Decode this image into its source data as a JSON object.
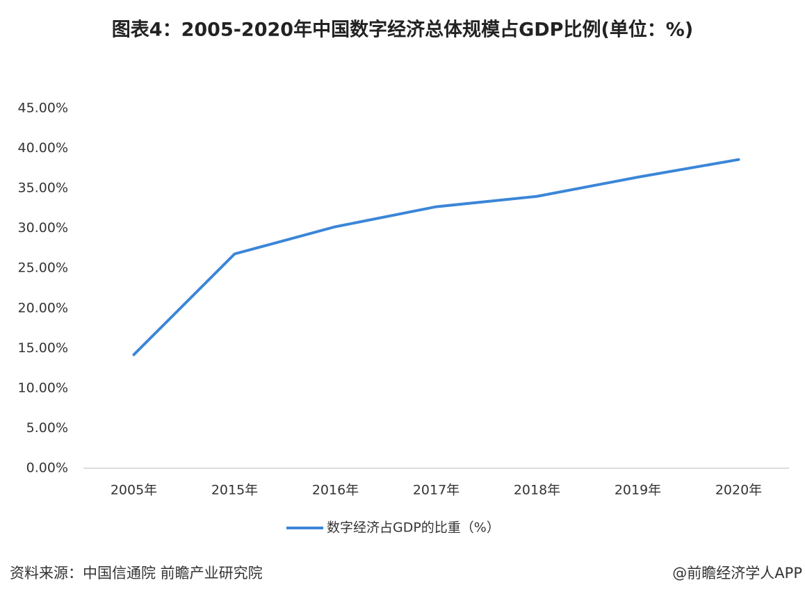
{
  "chart_data": {
    "type": "line",
    "title": "图表4：2005-2020年中国数字经济总体规模占GDP比例(单位：%)",
    "categories": [
      "2005年",
      "2015年",
      "2016年",
      "2017年",
      "2018年",
      "2019年",
      "2020年"
    ],
    "series": [
      {
        "name": "数字经济占GDP的比重（%）",
        "color": "#3b86d8",
        "values": [
          14.2,
          26.8,
          30.2,
          32.7,
          34.0,
          36.4,
          38.6
        ]
      }
    ],
    "ylim": [
      0,
      45
    ],
    "yticks": [
      {
        "value": 0,
        "label": "0.00%"
      },
      {
        "value": 5,
        "label": "5.00%"
      },
      {
        "value": 10,
        "label": "10.00%"
      },
      {
        "value": 15,
        "label": "15.00%"
      },
      {
        "value": 20,
        "label": "20.00%"
      },
      {
        "value": 25,
        "label": "25.00%"
      },
      {
        "value": 30,
        "label": "30.00%"
      },
      {
        "value": 35,
        "label": "35.00%"
      },
      {
        "value": 40,
        "label": "40.00%"
      },
      {
        "value": 45,
        "label": "45.00%"
      }
    ],
    "grid": false,
    "legend": "bottom",
    "source": "资料来源：中国信通院 前瞻产业研究院",
    "credit": "@前瞻经济学人APP"
  }
}
